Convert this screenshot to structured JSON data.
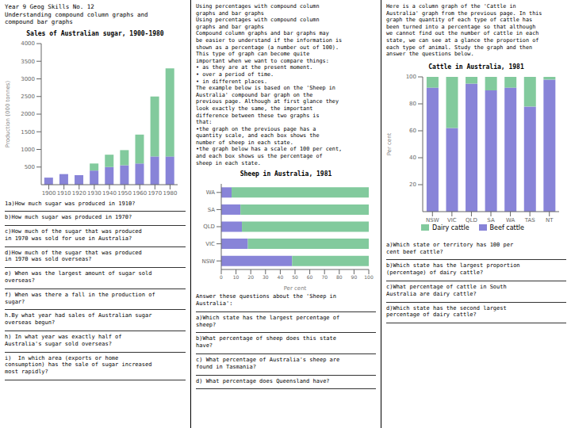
{
  "chart_data": [
    {
      "type": "bar",
      "title": "Sales of Australian sugar, 1900-1980",
      "subtitle": "Year 9 Geog Skills No. 12\nUnderstanding compound column graphs and\ncompound bar graphs",
      "ylabel": "Production (000 tonnes)",
      "categories": [
        "1900",
        "1910",
        "1920",
        "1930",
        "1940",
        "1950",
        "1960",
        "1970",
        "1980"
      ],
      "series": [
        {
          "color": "#8884d8",
          "values": [
            200,
            300,
            270,
            400,
            500,
            550,
            600,
            800,
            800
          ]
        },
        {
          "color": "#82ca9d",
          "values": [
            0,
            0,
            0,
            200,
            350,
            430,
            820,
            1700,
            2500
          ]
        }
      ],
      "ylim": [
        0,
        4000
      ],
      "yticks": [
        500,
        1000,
        1500,
        2000,
        2500,
        3000,
        3500,
        4000
      ],
      "stacked": true,
      "grid": false,
      "annotations": [
        "1a)How much sugar was produced in 1910?",
        "b)How much sugar was produced in 1970?",
        "c)How much of the sugar that was produced\nin 1970 was sold for use in Australia?",
        "d)How much of the sugar that was produced\nin 1970 was sold overseas?",
        "e) When was the largest amount of sugar sold\noverseas?",
        "f) When was there a fall in the production of\nsugar?",
        "h.By what year had sales of Australian sugar\noverseas begun?",
        "h) In what year was exactly half of\nAustralia's sugar sold overseas?",
        "i)  In which area (exports or home\nconsumption) has the sale of sugar increased\nmost rapidly?"
      ]
    },
    {
      "type": "bar",
      "orientation": "horizontal",
      "title": "Sheep in Australia, 1981",
      "subtitle": "Using percentages with compound column\ngraphs and bar graphs\nUsing percentages with compound column\ngraphs and bar graphs\nCompound column graphs and bar graphs may\nbe easier to understand if the information is\nshown as a percentage (a number out of 100).\nThis type of graph can become quite\nimportant when we want to compare things:\n• as they are at the present moment.\n• over a period of time.\n• in different places.\nThe example below is based on the 'Sheep in\nAustralia' compound bar graph on the\nprevious page. Although at first glance they\nlook exactly the same, the important\ndifference between these two graphs is\nthat:\n•the graph on the previous page has a\nquantity scale, and each box shows the\nnumber of sheep in each state.\n•the graph below has a scale of 100 per cent,\nand each box shows us the percentage of\nsheep in each state.",
      "xlabel": "Per cent",
      "categories": [
        "NSW",
        "VIC",
        "QLD",
        "SA",
        "WA"
      ],
      "series": [
        {
          "color": "#8884d8",
          "values": [
            48,
            18,
            14,
            13,
            7
          ]
        },
        {
          "color": "#82ca9d",
          "values": [
            52,
            82,
            86,
            87,
            93
          ]
        }
      ],
      "xlim": [
        0,
        100
      ],
      "xticks": [
        0,
        10,
        20,
        30,
        40,
        50,
        60,
        70,
        80,
        90,
        100
      ],
      "stacked": true,
      "grid": false,
      "annotations": [
        "Answer these questions about the 'Sheep in\nAustralia':",
        "a)Which state has the largest percentage of\nsheep?",
        "b)What percentage of sheep does this state\nhave?",
        "c) What percentage of Australia's sheep are\nfound in Tasmania?",
        "d) What percentage does Queensland have?"
      ]
    },
    {
      "type": "bar",
      "title": "Cattle in Australia, 1981",
      "subtitle": "Here is a column graph of the 'Cattle in\nAustralia' graph from the previous page. In this\ngraph the quantity of each type of cattle has\nbeen turned into a percentage so that although\nwe cannot find out the number of cattle in each\nstate, we can see at a glance the proportion of\neach type of animal. Study the graph and then\nanswer the questions below.",
      "ylabel": "Per cent",
      "categories": [
        "NSW",
        "VIC",
        "QLD",
        "SA",
        "WA",
        "TAS",
        "NT"
      ],
      "series": [
        {
          "name": "Beef cattle",
          "color": "#8884d8",
          "values": [
            92,
            62,
            95,
            90,
            92,
            78,
            98
          ]
        },
        {
          "name": "Dairy cattle",
          "color": "#82ca9d",
          "values": [
            8,
            38,
            5,
            10,
            8,
            22,
            2
          ]
        }
      ],
      "ylim": [
        0,
        100
      ],
      "yticks": [
        20,
        40,
        60,
        80,
        100
      ],
      "stacked": true,
      "grid": false,
      "legend": "bottom",
      "annotations": [
        "a)Which state or territory has 100 per\ncent beef cattle?",
        "b)Which state has the largest proportion\n(percentage) of dairy cattle?",
        "c)What percentage of cattle in South\nAustralia are dairy cattle?",
        "d)Which state has the second largest\npercentage of dairy cattle?"
      ]
    }
  ]
}
